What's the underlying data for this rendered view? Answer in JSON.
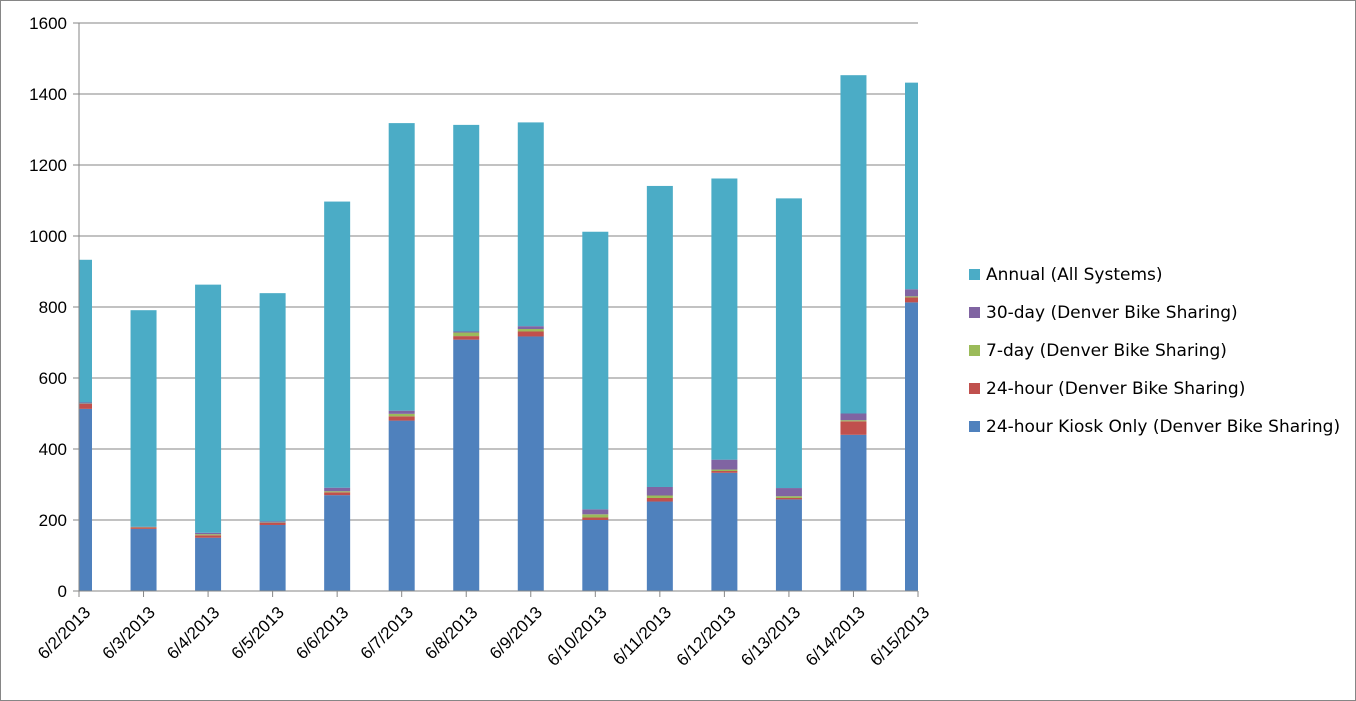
{
  "chart_data": {
    "type": "bar",
    "stacked": true,
    "categories": [
      "6/2/2013",
      "6/3/2013",
      "6/4/2013",
      "6/5/2013",
      "6/6/2013",
      "6/7/2013",
      "6/8/2013",
      "6/9/2013",
      "6/10/2013",
      "6/11/2013",
      "6/12/2013",
      "6/13/2013",
      "6/14/2013",
      "6/15/2013"
    ],
    "series": [
      {
        "name": "24-hour Kiosk Only (Denver Bike Sharing)",
        "color": "#4F81BD",
        "values": [
          513,
          175,
          150,
          186,
          270,
          480,
          708,
          717,
          200,
          252,
          333,
          258,
          440,
          813
        ]
      },
      {
        "name": "24-hour (Denver Bike Sharing)",
        "color": "#C0504D",
        "values": [
          14,
          4,
          7,
          6,
          8,
          12,
          10,
          14,
          7,
          10,
          5,
          4,
          38,
          14
        ]
      },
      {
        "name": "7-day (Denver Bike Sharing)",
        "color": "#9BBB59",
        "values": [
          1,
          1,
          3,
          1,
          3,
          7,
          10,
          7,
          9,
          7,
          4,
          5,
          3,
          3
        ]
      },
      {
        "name": "30-day (Denver Bike Sharing)",
        "color": "#8064A2",
        "values": [
          3,
          1,
          4,
          3,
          10,
          9,
          3,
          8,
          14,
          24,
          28,
          23,
          19,
          20
        ]
      },
      {
        "name": "Annual (All Systems)",
        "color": "#4BACC6",
        "values": [
          402,
          610,
          699,
          643,
          806,
          810,
          582,
          574,
          782,
          848,
          792,
          816,
          953,
          582
        ]
      }
    ],
    "ylim": [
      0,
      1600
    ],
    "yticks": [
      0,
      200,
      400,
      600,
      800,
      1000,
      1200,
      1400,
      1600
    ],
    "grid": true,
    "legend_position": "right",
    "legend_order": [
      "Annual (All Systems)",
      "30-day (Denver Bike Sharing)",
      "7-day (Denver Bike Sharing)",
      "24-hour (Denver Bike Sharing)",
      "24-hour Kiosk Only (Denver Bike Sharing)"
    ],
    "title": "",
    "xlabel": "",
    "ylabel": ""
  }
}
